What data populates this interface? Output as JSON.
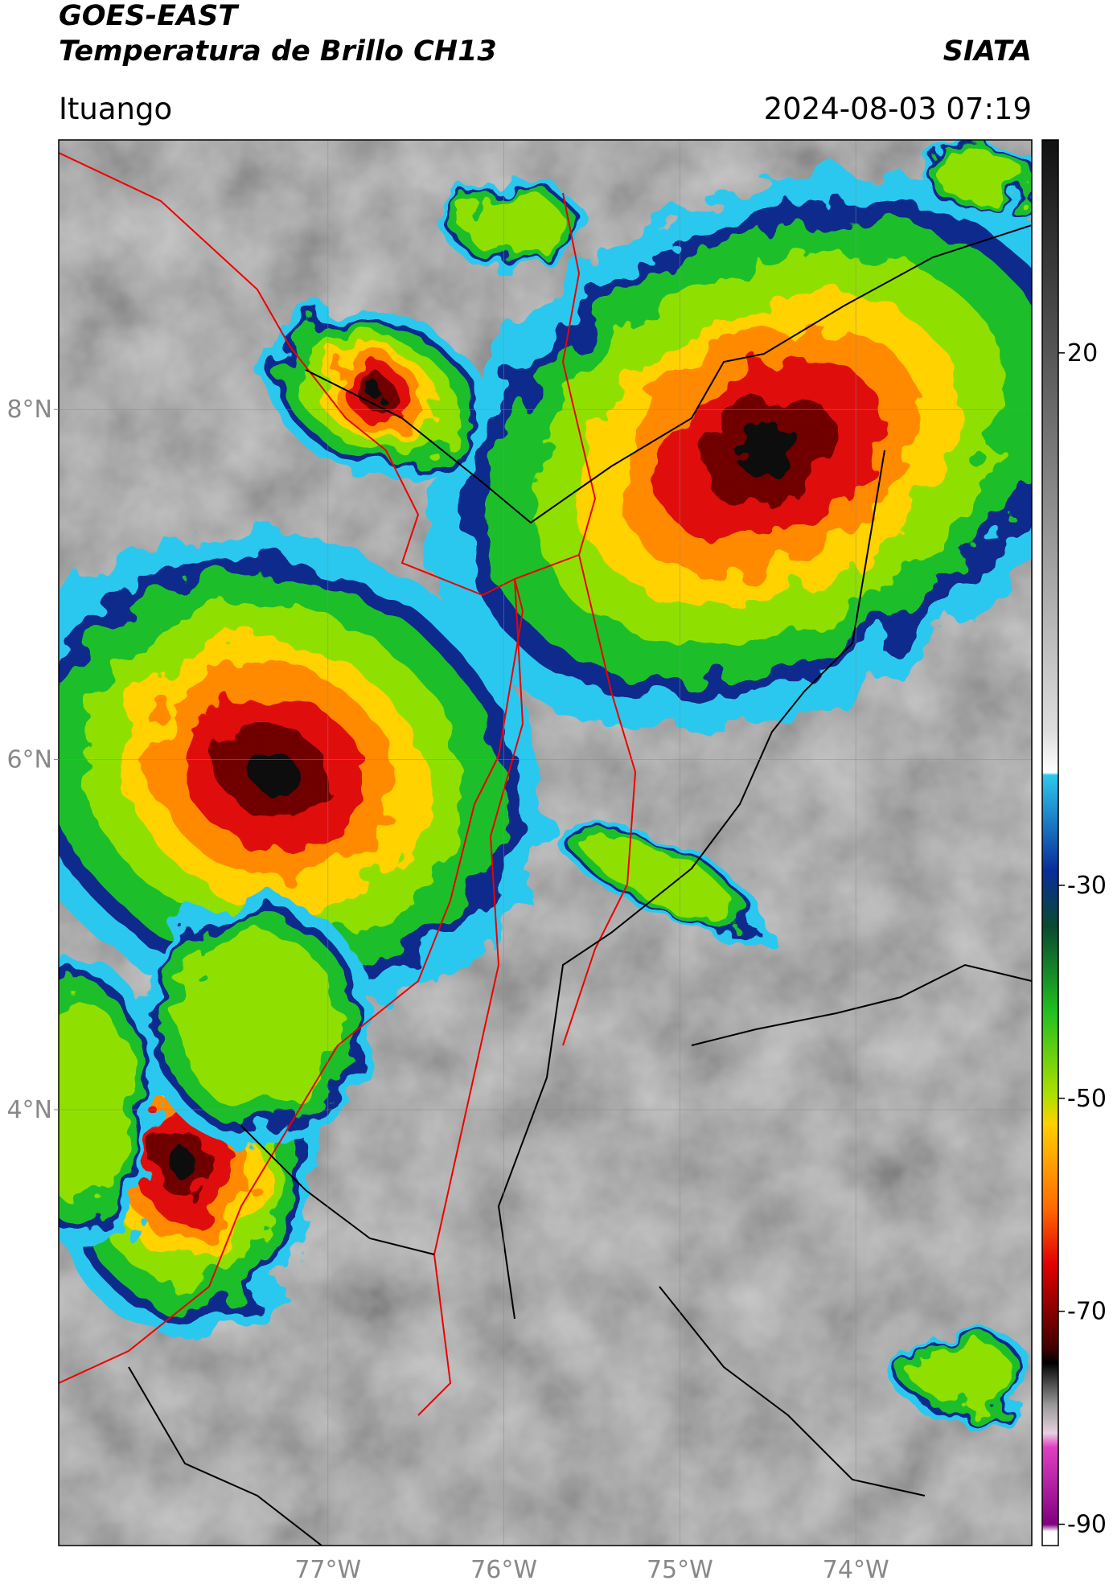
{
  "header": {
    "title": "GOES-EAST",
    "subtitle": "Temperatura de Brillo CH13",
    "source": "SIATA",
    "location": "Ituango",
    "datetime": "2024-08-03 07:19"
  },
  "map": {
    "xlim": [
      -78.53,
      -73.0
    ],
    "ylim": [
      1.51,
      9.54
    ],
    "xticks": [
      {
        "value": -77,
        "label": "77°W"
      },
      {
        "value": -76,
        "label": "76°W"
      },
      {
        "value": -75,
        "label": "75°W"
      },
      {
        "value": -74,
        "label": "74°W"
      }
    ],
    "yticks": [
      {
        "value": 8,
        "label": "8°N"
      },
      {
        "value": 6,
        "label": "6°N"
      },
      {
        "value": 4,
        "label": "4°N"
      }
    ]
  },
  "colorbar": {
    "lim": [
      -92,
      40
    ],
    "ticks": [
      20,
      -30,
      -50,
      -70,
      -90
    ]
  }
}
